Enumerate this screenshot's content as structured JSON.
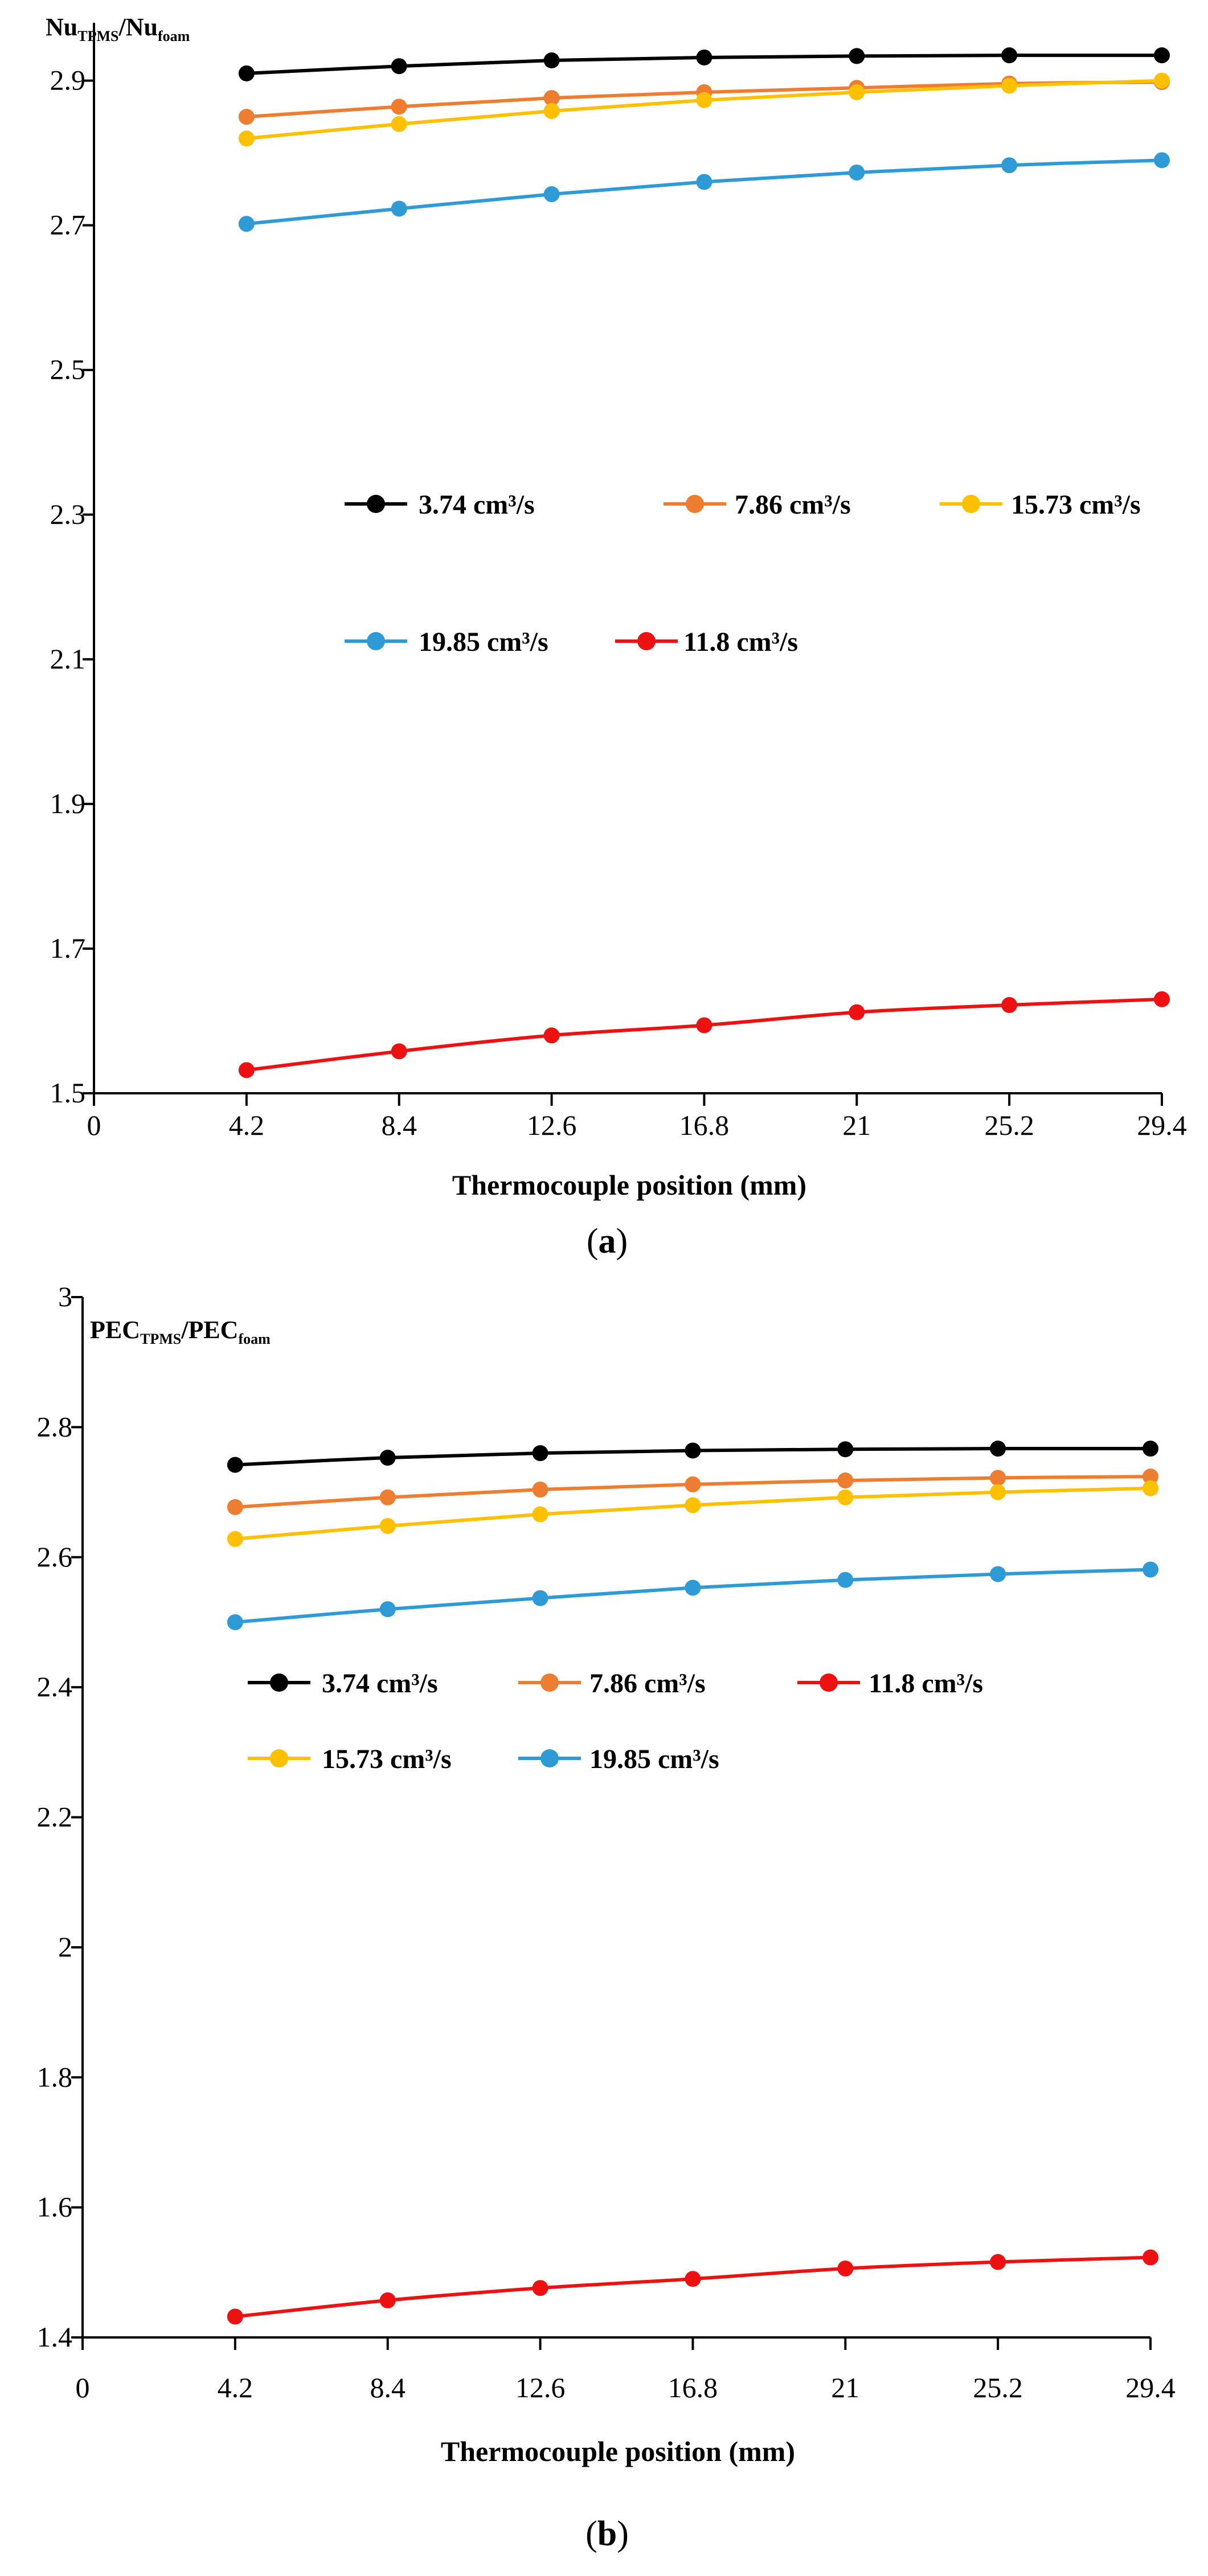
{
  "chart_data": [
    {
      "type": "line",
      "panel": "a",
      "ylabel_main": "Nu",
      "ylabel_sub": "TPMS",
      "ylabel_main2": "/Nu",
      "ylabel_sub2": "foam",
      "xlabel": "Thermocouple position (mm)",
      "xlim": [
        0,
        29.4
      ],
      "ylim": [
        1.5,
        2.98
      ],
      "xticks": [
        "0",
        "4.2",
        "8.4",
        "12.6",
        "16.8",
        "21",
        "25.2",
        "29.4"
      ],
      "yticks": [
        "1.5",
        "1.7",
        "1.9",
        "2.1",
        "2.3",
        "2.5",
        "2.7",
        "2.9"
      ],
      "x": [
        4.2,
        8.4,
        12.6,
        16.8,
        21,
        25.2,
        29.4
      ],
      "series": [
        {
          "name": "3.74 cm³/s",
          "color": "#000000",
          "values": [
            2.91,
            2.92,
            2.928,
            2.932,
            2.934,
            2.935,
            2.935
          ]
        },
        {
          "name": "7.86 cm³/s",
          "color": "#ED7D31",
          "values": [
            2.85,
            2.864,
            2.876,
            2.884,
            2.89,
            2.896,
            2.898
          ]
        },
        {
          "name": "15.73 cm³/s",
          "color": "#FFC000",
          "values": [
            2.82,
            2.84,
            2.858,
            2.873,
            2.884,
            2.893,
            2.9
          ]
        },
        {
          "name": "19.85 cm³/s",
          "color": "#2E9BD6",
          "values": [
            2.702,
            2.723,
            2.743,
            2.76,
            2.773,
            2.783,
            2.79
          ]
        },
        {
          "name": "11.8 cm³/s",
          "color": "#EE1111",
          "values": [
            1.532,
            1.558,
            1.58,
            1.594,
            1.612,
            1.622,
            1.63
          ]
        }
      ],
      "legend_rows": [
        [
          0,
          1,
          2
        ],
        [
          3,
          4
        ]
      ],
      "caption_open": "(",
      "caption_letter": "a",
      "caption_close": ")"
    },
    {
      "type": "line",
      "panel": "b",
      "ylabel_main": "PEC",
      "ylabel_sub": "TPMS",
      "ylabel_main2": "/PEC",
      "ylabel_sub2": "foam",
      "xlabel": "Thermocouple position (mm)",
      "xlim": [
        0,
        29.4
      ],
      "ylim": [
        1.4,
        3.0
      ],
      "xticks": [
        "0",
        "4.2",
        "8.4",
        "12.6",
        "16.8",
        "21",
        "25.2",
        "29.4"
      ],
      "yticks": [
        "1.4",
        "1.6",
        "1.8",
        "2",
        "2.2",
        "2.4",
        "2.6",
        "2.8",
        "3"
      ],
      "x": [
        4.2,
        8.4,
        12.6,
        16.8,
        21,
        25.2,
        29.4
      ],
      "series": [
        {
          "name": "3.74 cm³/s",
          "color": "#000000",
          "values": [
            2.742,
            2.753,
            2.76,
            2.764,
            2.766,
            2.767,
            2.767
          ]
        },
        {
          "name": "7.86 cm³/s",
          "color": "#ED7D31",
          "values": [
            2.677,
            2.692,
            2.704,
            2.712,
            2.718,
            2.722,
            2.724
          ]
        },
        {
          "name": "11.8 cm³/s",
          "color": "#EE1111",
          "values": [
            1.432,
            1.457,
            1.476,
            1.49,
            1.506,
            1.516,
            1.523
          ]
        },
        {
          "name": "15.73 cm³/s",
          "color": "#FFC000",
          "values": [
            2.628,
            2.648,
            2.666,
            2.68,
            2.692,
            2.7,
            2.706
          ]
        },
        {
          "name": "19.85 cm³/s",
          "color": "#2E9BD6",
          "values": [
            2.5,
            2.52,
            2.537,
            2.553,
            2.565,
            2.574,
            2.581
          ]
        }
      ],
      "legend_rows": [
        [
          0,
          1,
          2
        ],
        [
          3,
          4
        ]
      ],
      "caption_open": "(",
      "caption_letter": "b",
      "caption_close": ")"
    }
  ]
}
